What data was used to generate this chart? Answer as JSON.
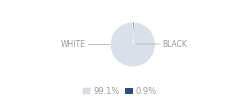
{
  "slices": [
    99.1,
    0.9
  ],
  "labels": [
    "WHITE",
    "BLACK"
  ],
  "colors": [
    "#d9e0ea",
    "#2d4f7a"
  ],
  "legend_colors": [
    "#d9e0ea",
    "#2d4f7a"
  ],
  "legend_labels": [
    "99.1%",
    "0.9%"
  ],
  "startangle": 90,
  "bg_color": "#ffffff",
  "label_fontsize": 5.5,
  "legend_fontsize": 6.0,
  "label_color": "#999999",
  "line_color": "#bbbbbb"
}
